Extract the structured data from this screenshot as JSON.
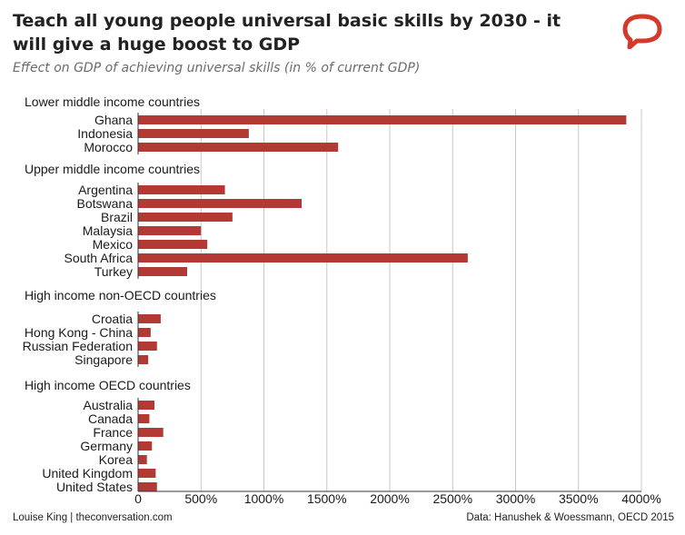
{
  "header": {
    "title": "Teach all young people universal basic skills by 2030 - it will give a huge boost to GDP",
    "subtitle": "Effect on GDP of achieving universal skills (in % of current GDP)"
  },
  "footer": {
    "credit": "Louise King | theconversation.com",
    "source": "Data: Hanushek & Woessmann, OECD 2015"
  },
  "logo_icon": "speech-bubble-icon",
  "colors": {
    "bar": "#b33a34",
    "grid": "#c8c8c8",
    "axis": "#333333"
  },
  "chart_data": {
    "type": "bar",
    "orientation": "horizontal",
    "title": "Teach all young people universal basic skills by 2030 - it will give a huge boost to GDP",
    "subtitle": "Effect on GDP of achieving universal skills (in % of current GDP)",
    "xlabel": "",
    "ylabel": "",
    "xlim": [
      0,
      4000
    ],
    "x_ticks": [
      0,
      500,
      1000,
      1500,
      2000,
      2500,
      3000,
      3500,
      4000
    ],
    "x_tick_labels": [
      "0",
      "500%",
      "1000%",
      "1500%",
      "2000%",
      "2500%",
      "3000%",
      "3500%",
      "4000%"
    ],
    "grid": "vertical",
    "groups": [
      {
        "name": "Lower middle income countries",
        "categories": [
          "Ghana",
          "Indonesia",
          "Morocco"
        ],
        "values": [
          3880,
          880,
          1590
        ]
      },
      {
        "name": "Upper middle income countries",
        "categories": [
          "Argentina",
          "Botswana",
          "Brazil",
          "Malaysia",
          "Mexico",
          "South Africa",
          "Turkey"
        ],
        "values": [
          690,
          1300,
          750,
          500,
          550,
          2620,
          390
        ]
      },
      {
        "name": "High income non-OECD countries",
        "categories": [
          "Croatia",
          "Hong Kong - China",
          "Russian Federation",
          "Singapore"
        ],
        "values": [
          180,
          100,
          150,
          80
        ]
      },
      {
        "name": "High income OECD countries",
        "categories": [
          "Australia",
          "Canada",
          "France",
          "Germany",
          "Korea",
          "United Kingdom",
          "United States"
        ],
        "values": [
          130,
          90,
          200,
          110,
          70,
          140,
          150
        ]
      }
    ]
  }
}
